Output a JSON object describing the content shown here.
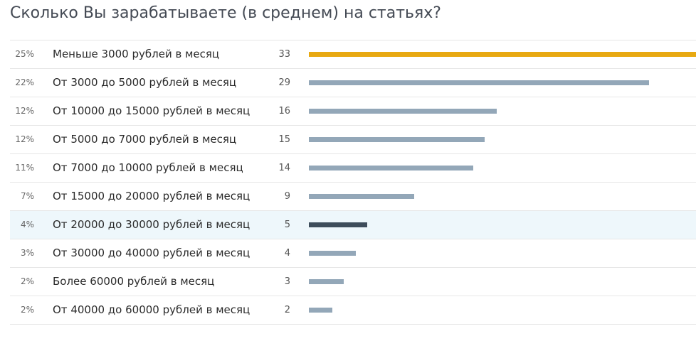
{
  "poll": {
    "title": "Сколько Вы зарабатываете (в среднем) на статьях?",
    "colors": {
      "leader_bar": "#e8a912",
      "default_bar": "#93a7b8",
      "selected_bar": "#3e4d5b",
      "selected_row_bg": "#eef7fb"
    }
  },
  "chart_data": {
    "type": "bar",
    "orientation": "horizontal",
    "title": "Сколько Вы зарабатываете (в среднем) на статьях?",
    "categories": [
      "Меньше 3000 рублей в месяц",
      "От 3000 до 5000 рублей в месяц",
      "От 10000 до 15000 рублей в месяц",
      "От 5000 до 7000 рублей в месяц",
      "От 7000 до 10000 рублей в месяц",
      "От 15000 до 20000 рублей в месяц",
      "От 20000 до 30000 рублей в месяц",
      "От 30000 до 40000 рублей в месяц",
      "Более 60000 рублей в месяц",
      "От 40000 до 60000 рублей в месяц"
    ],
    "percent_labels": [
      "25%",
      "22%",
      "12%",
      "12%",
      "11%",
      "7%",
      "4%",
      "3%",
      "2%",
      "2%"
    ],
    "values": [
      33,
      29,
      16,
      15,
      14,
      9,
      5,
      4,
      3,
      2
    ],
    "selected_index": 6,
    "leader_index": 0,
    "xlim": [
      0,
      33
    ]
  }
}
